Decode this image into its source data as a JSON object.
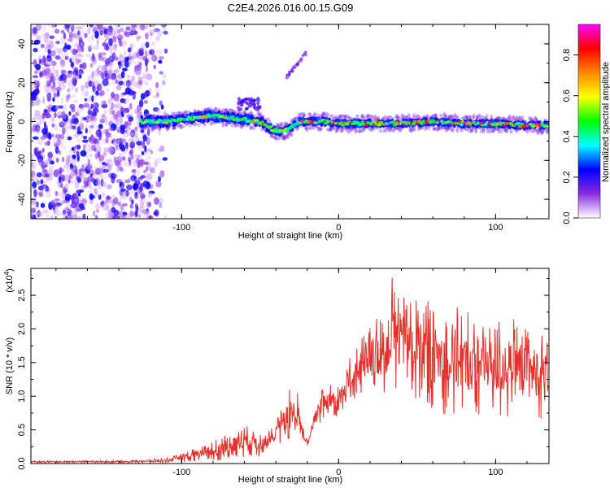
{
  "title": "C2E4.2026.016.00.15.G09",
  "spectrogram": {
    "type": "heatmap",
    "xlabel": "Height of straight line (km)",
    "ylabel": "Frequency (Hz)",
    "xlim": [
      -196,
      134
    ],
    "ylim": [
      -50,
      50
    ],
    "xticks": [
      -100,
      0,
      100
    ],
    "yticks": [
      -40,
      -20,
      0,
      20,
      40
    ],
    "colorbar": {
      "label": "Normalized spectral amplitude",
      "range": [
        0,
        0.95
      ],
      "ticks": [
        0.0,
        0.2,
        0.4,
        0.6,
        0.8
      ],
      "colormap": [
        "#ffffff",
        "#8a2be2",
        "#0000ff",
        "#00ffff",
        "#00ff00",
        "#ffff00",
        "#ff8800",
        "#ff0000",
        "#ff00ff"
      ]
    },
    "features": {
      "noise_region_x": [
        -196,
        -120
      ],
      "noise_fade_to_x": -110,
      "signal_start_x": -126,
      "signal_end_x": 134,
      "dc_track": [
        {
          "x": -126,
          "f": 0
        },
        {
          "x": -110,
          "f": 0
        },
        {
          "x": -100,
          "f": 1
        },
        {
          "x": -90,
          "f": 2
        },
        {
          "x": -80,
          "f": 3
        },
        {
          "x": -70,
          "f": 2
        },
        {
          "x": -60,
          "f": 1
        },
        {
          "x": -50,
          "f": 0
        },
        {
          "x": -44,
          "f": -3
        },
        {
          "x": -40,
          "f": -5
        },
        {
          "x": -35,
          "f": -5
        },
        {
          "x": -30,
          "f": -3
        },
        {
          "x": -25,
          "f": 0
        },
        {
          "x": -10,
          "f": 0
        },
        {
          "x": 0,
          "f": -1
        },
        {
          "x": 20,
          "f": -1
        },
        {
          "x": 40,
          "f": -1
        },
        {
          "x": 60,
          "f": 0
        },
        {
          "x": 80,
          "f": -1
        },
        {
          "x": 100,
          "f": -1
        },
        {
          "x": 120,
          "f": -2
        },
        {
          "x": 134,
          "f": -2
        }
      ],
      "streak": {
        "x": [
          -33,
          -20
        ],
        "f": [
          23,
          36
        ]
      }
    }
  },
  "snr": {
    "type": "line",
    "xlabel": "Height of straight line (km)",
    "ylabel": "SNR (10 * v/v)",
    "scale_label": "(x10",
    "scale_exp": "4",
    "xlim": [
      -196,
      134
    ],
    "ylim": [
      0,
      2.9
    ],
    "xticks": [
      -100,
      0,
      100
    ],
    "yticks": [
      0.0,
      0.5,
      1.0,
      1.5,
      2.0,
      2.5
    ],
    "ytick_labels": [
      "0.0",
      "0.5",
      "1.0",
      "1.5",
      "2.0",
      "2.5"
    ],
    "color": "#e8302a",
    "envelope": [
      {
        "x": -196,
        "lo": 0.01,
        "hi": 0.04
      },
      {
        "x": -130,
        "lo": 0.01,
        "hi": 0.05
      },
      {
        "x": -110,
        "lo": 0.01,
        "hi": 0.08
      },
      {
        "x": -100,
        "lo": 0.02,
        "hi": 0.15
      },
      {
        "x": -90,
        "lo": 0.02,
        "hi": 0.25
      },
      {
        "x": -80,
        "lo": 0.03,
        "hi": 0.35
      },
      {
        "x": -70,
        "lo": 0.05,
        "hi": 0.45
      },
      {
        "x": -60,
        "lo": 0.1,
        "hi": 0.58
      },
      {
        "x": -50,
        "lo": 0.1,
        "hi": 0.45
      },
      {
        "x": -40,
        "lo": 0.3,
        "hi": 0.6
      },
      {
        "x": -35,
        "lo": 0.3,
        "hi": 0.95
      },
      {
        "x": -30,
        "lo": 0.3,
        "hi": 1.2
      },
      {
        "x": -25,
        "lo": 0.25,
        "hi": 1.05
      },
      {
        "x": -20,
        "lo": 0.2,
        "hi": 0.45
      },
      {
        "x": -15,
        "lo": 0.5,
        "hi": 1.0
      },
      {
        "x": -10,
        "lo": 0.6,
        "hi": 1.2
      },
      {
        "x": 0,
        "lo": 0.7,
        "hi": 1.3
      },
      {
        "x": 10,
        "lo": 0.9,
        "hi": 1.7
      },
      {
        "x": 20,
        "lo": 1.0,
        "hi": 2.1
      },
      {
        "x": 30,
        "lo": 1.0,
        "hi": 2.3
      },
      {
        "x": 35,
        "lo": 1.0,
        "hi": 2.9
      },
      {
        "x": 40,
        "lo": 1.0,
        "hi": 2.6
      },
      {
        "x": 50,
        "lo": 0.9,
        "hi": 2.55
      },
      {
        "x": 60,
        "lo": 0.8,
        "hi": 2.45
      },
      {
        "x": 70,
        "lo": 0.7,
        "hi": 2.35
      },
      {
        "x": 80,
        "lo": 0.7,
        "hi": 2.3
      },
      {
        "x": 90,
        "lo": 0.65,
        "hi": 2.2
      },
      {
        "x": 100,
        "lo": 0.6,
        "hi": 2.25
      },
      {
        "x": 110,
        "lo": 0.65,
        "hi": 2.15
      },
      {
        "x": 120,
        "lo": 0.6,
        "hi": 2.1
      },
      {
        "x": 134,
        "lo": 0.7,
        "hi": 2.05
      }
    ]
  }
}
